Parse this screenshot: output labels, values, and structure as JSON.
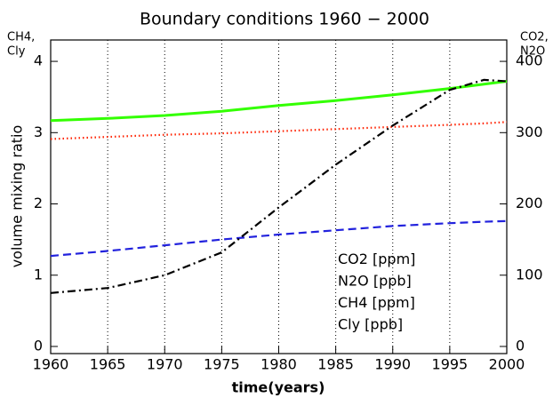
{
  "chart_data": {
    "type": "line",
    "title": "Boundary conditions 1960 − 2000",
    "xlabel": "time(years)",
    "ylabel": "volume mixing ratio",
    "ylabel_corner": [
      {
        "text": "CH4,",
        "color": "#5522cc"
      },
      {
        "text": "Cly",
        "color": "#000000"
      }
    ],
    "y2label_corner": [
      {
        "text": "CO2,",
        "color": "#33ff00"
      },
      {
        "text": "N2O",
        "color": "#ff2200"
      }
    ],
    "x": [
      1960,
      1965,
      1970,
      1975,
      1980,
      1985,
      1990,
      1995,
      1998,
      2000
    ],
    "xlim": [
      1960,
      2000
    ],
    "xticks": [
      1960,
      1965,
      1970,
      1975,
      1980,
      1985,
      1990,
      1995,
      2000
    ],
    "xgrid": true,
    "ylim": [
      -0.1,
      4.3
    ],
    "yticks": [
      0,
      1,
      2,
      3,
      4
    ],
    "y2lim": [
      -10,
      430
    ],
    "y2ticks": [
      0,
      100,
      200,
      300,
      400
    ],
    "legend_loc": "lower right",
    "series": [
      {
        "name": "CO2 [ppm]",
        "color": "#33ff00",
        "dash": "solid",
        "axis": "y2",
        "values": [
          317,
          320,
          324,
          330,
          338,
          345,
          353,
          362,
          368,
          372
        ]
      },
      {
        "name": "N2O [ppb]",
        "color": "#ff2200",
        "dash": "dotted",
        "axis": "y2",
        "values": [
          291,
          294,
          297,
          299,
          302,
          305,
          308,
          311,
          313,
          315
        ]
      },
      {
        "name": "CH4 [ppm]",
        "color": "#2222dd",
        "dash": "dashed",
        "values": [
          1.27,
          1.34,
          1.42,
          1.5,
          1.57,
          1.63,
          1.69,
          1.73,
          1.75,
          1.76
        ]
      },
      {
        "name": "Cly [ppb]",
        "color": "#000000",
        "dash": "dashdot",
        "values": [
          0.75,
          0.82,
          1.0,
          1.32,
          1.95,
          2.55,
          3.1,
          3.6,
          3.74,
          3.72
        ]
      }
    ]
  }
}
